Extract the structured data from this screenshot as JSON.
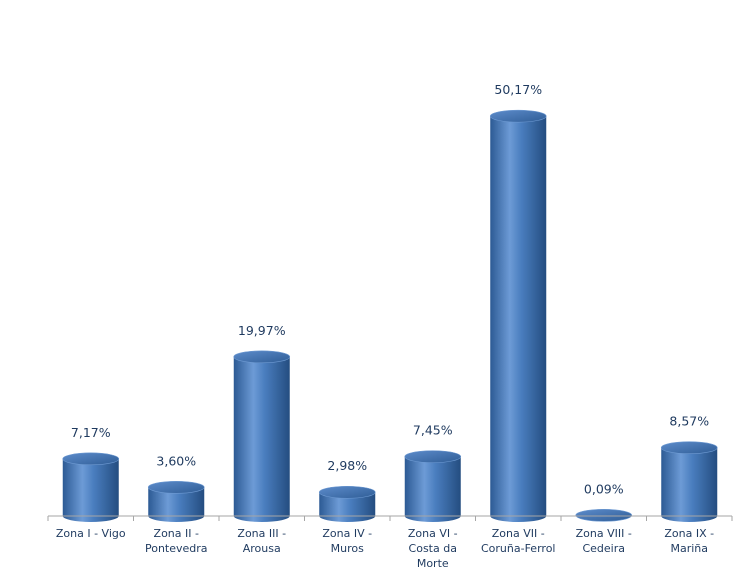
{
  "chart_data": {
    "type": "bar",
    "style": "3d-cylinder",
    "categories": [
      [
        "Zona I - Vigo"
      ],
      [
        "Zona II -",
        "Pontevedra"
      ],
      [
        "Zona III -",
        "Arousa"
      ],
      [
        "Zona IV -",
        "Muros"
      ],
      [
        "Zona VI -",
        "Costa da",
        "Morte"
      ],
      [
        "Zona VII -",
        "Coruña-Ferrol"
      ],
      [
        "Zona VIII -",
        "Cedeira"
      ],
      [
        "Zona IX -",
        "Mariña"
      ]
    ],
    "values": [
      7.17,
      3.6,
      19.97,
      2.98,
      7.45,
      50.17,
      0.09,
      8.57
    ],
    "data_labels": [
      "7,17%",
      "3,60%",
      "19,97%",
      "2,98%",
      "7,45%",
      "50,17%",
      "0,09%",
      "8,57%"
    ],
    "title": "",
    "xlabel": "",
    "ylabel": "",
    "ylim": [
      0,
      55
    ],
    "grid": false,
    "legend": "none",
    "colors": {
      "bar": "#4a7ebf",
      "bar_dark": "#2c5a94",
      "bar_light": "#8fb4e3",
      "text": "#1f3a5f",
      "axis": "#a6a6a6"
    }
  }
}
